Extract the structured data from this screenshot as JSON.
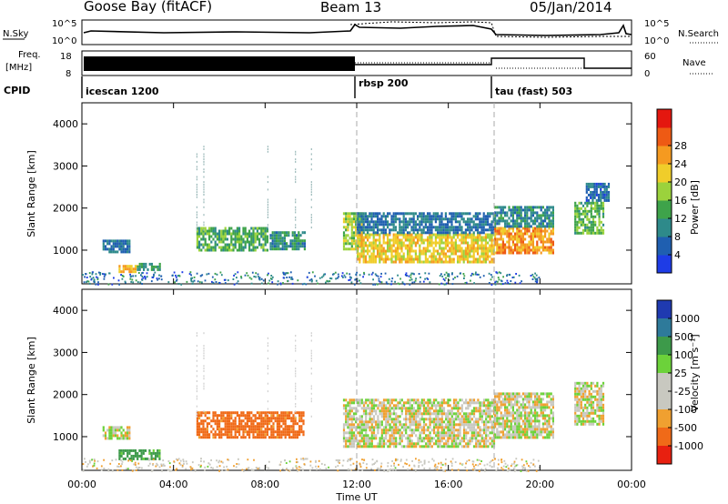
{
  "header": {
    "station": "Goose Bay (fitACF)",
    "beam": "Beam 13",
    "date": "05/Jan/2014"
  },
  "panels": {
    "noise": {
      "left_label": "N.Sky",
      "right_label": "N.Search",
      "left_ticks": [
        "10^5",
        "10^0"
      ],
      "right_ticks": [
        "10^5",
        "10^0"
      ]
    },
    "freq": {
      "left_label_1": "Freq.",
      "left_label_2": "[MHz]",
      "left_ticks": [
        "18",
        "8"
      ],
      "right_label": "Nave",
      "right_ticks": [
        "60",
        "0"
      ]
    },
    "cpid": {
      "label": "CPID",
      "modes": [
        "icescan 1200",
        "rbsp 200",
        "tau (fast) 503"
      ]
    }
  },
  "x_axis": {
    "label": "Time UT",
    "ticks": [
      "00:00",
      "04:00",
      "08:00",
      "12:00",
      "16:00",
      "20:00",
      "00:00"
    ]
  },
  "y_axis": {
    "label": "Slant Range [km]",
    "ticks": [
      "1000",
      "2000",
      "3000",
      "4000"
    ]
  },
  "colorbars": {
    "power": {
      "label": "Power [dB]",
      "ticks": [
        "4",
        "8",
        "12",
        "16",
        "20",
        "24",
        "28"
      ],
      "colors": [
        "#1e3ce6",
        "#1f5fb0",
        "#2e8a8a",
        "#3ea34a",
        "#9bd23c",
        "#f0cd2a",
        "#f59a20",
        "#ee5a14",
        "#e4170f"
      ]
    },
    "velocity": {
      "label": "Velocity [m s⁻¹]",
      "ticks": [
        "1000",
        "500",
        "100",
        "25",
        "-25",
        "-100",
        "-500",
        "-1000"
      ],
      "colors": [
        "#1f3ab0",
        "#2e7a9a",
        "#3d9a4a",
        "#6cd23a",
        "#c8c8c0",
        "#f0a030",
        "#f06a18",
        "#e82010"
      ]
    }
  },
  "chart_data": {
    "type": "heatmap",
    "title": "Goose Bay (fitACF)",
    "xlabel": "Time UT",
    "x_range_hours": [
      0,
      24
    ],
    "y_range_km": [
      200,
      4500
    ],
    "cpid_segments": [
      {
        "mode": "icescan 1200",
        "start_h": 0,
        "end_h": 12
      },
      {
        "mode": "rbsp 200",
        "start_h": 12,
        "end_h": 18
      },
      {
        "mode": "tau (fast) 503",
        "start_h": 18,
        "end_h": 24
      }
    ],
    "power_regions": [
      {
        "t0": 0.9,
        "t1": 2.1,
        "r0": 950,
        "r1": 1250,
        "dB": 6
      },
      {
        "t0": 1.6,
        "t1": 2.4,
        "r0": 480,
        "r1": 650,
        "dB": 22
      },
      {
        "t0": 2.4,
        "t1": 3.4,
        "r0": 520,
        "r1": 700,
        "dB": 10
      },
      {
        "t0": 5.0,
        "t1": 8.1,
        "r0": 1000,
        "r1": 1550,
        "dB": 12
      },
      {
        "t0": 8.2,
        "t1": 9.7,
        "r0": 1050,
        "r1": 1450,
        "dB": 9
      },
      {
        "t0": 11.4,
        "t1": 12.2,
        "r0": 1050,
        "r1": 1900,
        "dB": 16
      },
      {
        "t0": 12.0,
        "t1": 18.0,
        "r0": 750,
        "r1": 1400,
        "dB": 20
      },
      {
        "t0": 12.0,
        "t1": 18.0,
        "r0": 1400,
        "r1": 1900,
        "dB": 6
      },
      {
        "t0": 18.0,
        "t1": 20.6,
        "r0": 950,
        "r1": 1550,
        "dB": 24
      },
      {
        "t0": 18.0,
        "t1": 20.6,
        "r0": 1550,
        "r1": 2050,
        "dB": 8
      },
      {
        "t0": 21.5,
        "t1": 22.8,
        "r0": 1400,
        "r1": 2150,
        "dB": 13
      },
      {
        "t0": 22.0,
        "t1": 23.0,
        "r0": 2150,
        "r1": 2600,
        "dB": 5
      }
    ],
    "velocity_regions": [
      {
        "t0": 0.9,
        "t1": 2.1,
        "r0": 950,
        "r1": 1250,
        "v": 0
      },
      {
        "t0": 1.6,
        "t1": 3.4,
        "r0": 480,
        "r1": 700,
        "v": 150
      },
      {
        "t0": 5.0,
        "t1": 9.7,
        "r0": 1000,
        "r1": 1600,
        "v": -150
      },
      {
        "t0": 11.4,
        "t1": 18.0,
        "r0": 750,
        "r1": 1900,
        "v": 0
      },
      {
        "t0": 18.0,
        "t1": 20.6,
        "r0": 950,
        "r1": 2050,
        "v": 0
      },
      {
        "t0": 21.5,
        "t1": 22.8,
        "r0": 1300,
        "r1": 2300,
        "v": 0
      }
    ]
  }
}
